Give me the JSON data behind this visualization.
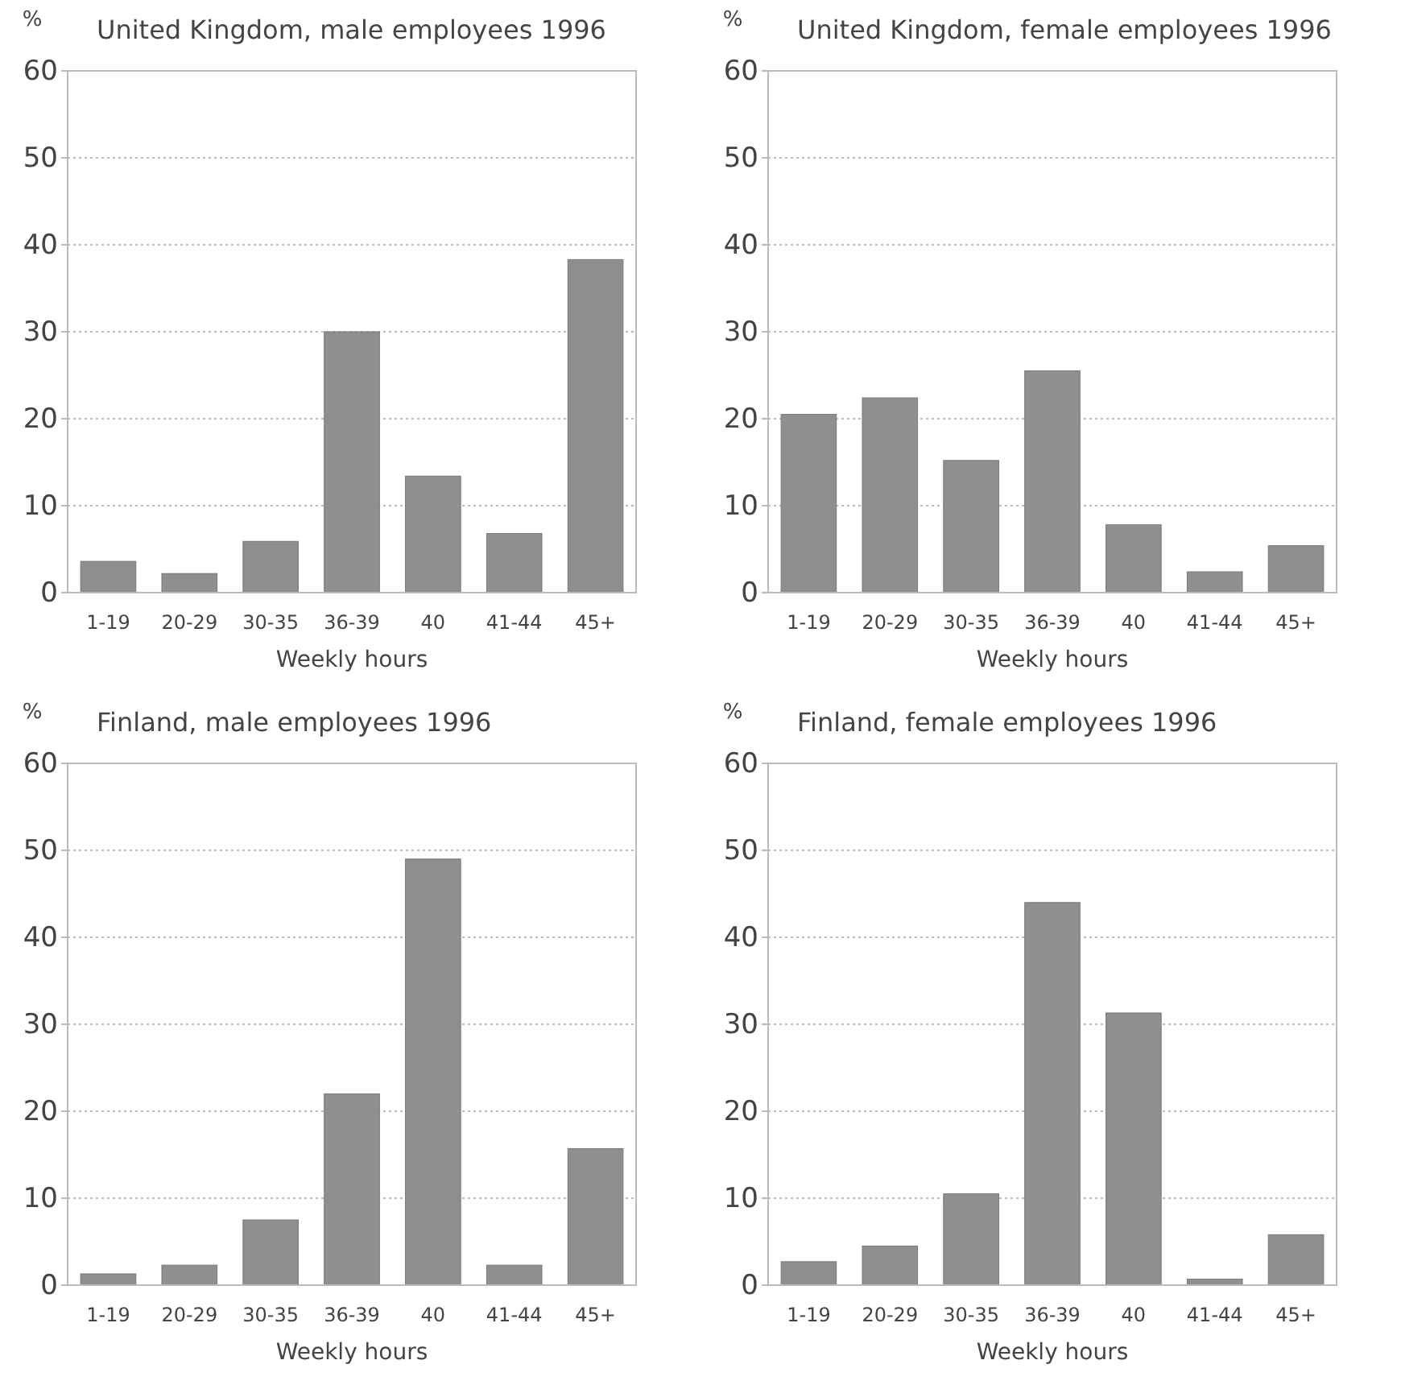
{
  "chart_data": [
    {
      "type": "bar",
      "title": "United Kingdom, male employees 1996",
      "ylabel": "%",
      "xlabel": "Weekly hours",
      "categories": [
        "1-19",
        "20-29",
        "30-35",
        "36-39",
        "40",
        "41-44",
        "45+"
      ],
      "values": [
        3.6,
        2.2,
        5.9,
        30,
        13.4,
        6.8,
        38.3
      ],
      "color": "#8f8f8f",
      "ylim": [
        0,
        60
      ],
      "yticks": [
        0,
        10,
        20,
        30,
        40,
        50,
        60
      ],
      "grid": "y"
    },
    {
      "type": "bar",
      "title": "United Kingdom, female employees 1996",
      "ylabel": "%",
      "xlabel": "Weekly hours",
      "categories": [
        "1-19",
        "20-29",
        "30-35",
        "36-39",
        "40",
        "41-44",
        "45+"
      ],
      "values": [
        20.5,
        22.4,
        15.2,
        25.5,
        7.8,
        2.4,
        5.4
      ],
      "color": "#8f8f8f",
      "ylim": [
        0,
        60
      ],
      "yticks": [
        0,
        10,
        20,
        30,
        40,
        50,
        60
      ],
      "grid": "y"
    },
    {
      "type": "bar",
      "title": "Finland, male employees 1996",
      "ylabel": "%",
      "xlabel": "Weekly hours",
      "categories": [
        "1-19",
        "20-29",
        "30-35",
        "36-39",
        "40",
        "41-44",
        "45+"
      ],
      "values": [
        1.3,
        2.3,
        7.5,
        22,
        49,
        2.3,
        15.7
      ],
      "color": "#8f8f8f",
      "ylim": [
        0,
        60
      ],
      "yticks": [
        0,
        10,
        20,
        30,
        40,
        50,
        60
      ],
      "grid": "y"
    },
    {
      "type": "bar",
      "title": "Finland, female employees 1996",
      "ylabel": "%",
      "xlabel": "Weekly hours",
      "categories": [
        "1-19",
        "20-29",
        "30-35",
        "36-39",
        "40",
        "41-44",
        "45+"
      ],
      "values": [
        2.7,
        4.5,
        10.5,
        44,
        31.3,
        0.7,
        5.8
      ],
      "color": "#8f8f8f",
      "ylim": [
        0,
        60
      ],
      "yticks": [
        0,
        10,
        20,
        30,
        40,
        50,
        60
      ],
      "grid": "y"
    }
  ]
}
